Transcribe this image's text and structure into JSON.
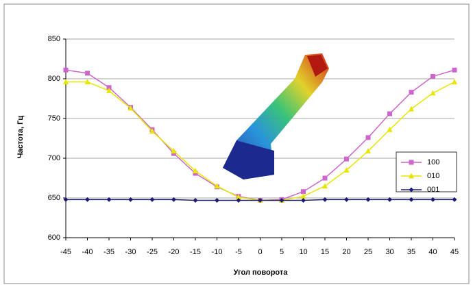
{
  "chart_data": {
    "type": "line",
    "x_label": "Угол поворота",
    "y_label": "Частота, Гц",
    "x": [
      -45,
      -40,
      -35,
      -30,
      -25,
      -20,
      -15,
      -10,
      -5,
      0,
      5,
      10,
      15,
      20,
      25,
      30,
      35,
      40,
      45
    ],
    "series": [
      {
        "name": "100",
        "color": "#cc66cc",
        "marker": "square",
        "values": [
          811,
          807,
          789,
          764,
          736,
          706,
          681,
          664,
          652,
          647,
          648,
          658,
          675,
          699,
          726,
          756,
          783,
          803,
          811
        ]
      },
      {
        "name": "010",
        "color": "#e6e600",
        "marker": "triangle",
        "values": [
          796,
          796,
          785,
          763,
          734,
          709,
          684,
          665,
          651,
          647,
          647,
          652,
          665,
          685,
          709,
          736,
          762,
          782,
          796
        ]
      },
      {
        "name": "001",
        "color": "#1c1c70",
        "marker": "diamond",
        "values": [
          648,
          648,
          648,
          648,
          648,
          648,
          647,
          647,
          647,
          647,
          647,
          647,
          648,
          648,
          648,
          648,
          648,
          648,
          648
        ]
      }
    ],
    "xlim": [
      -45,
      45
    ],
    "xticks": [
      -45,
      -40,
      -35,
      -30,
      -25,
      -20,
      -15,
      -10,
      -5,
      0,
      5,
      10,
      15,
      20,
      25,
      30,
      35,
      40,
      45
    ],
    "ylim": [
      600,
      850
    ],
    "yticks": [
      600,
      650,
      700,
      750,
      800,
      850
    ],
    "grid": true,
    "legend": "right"
  }
}
